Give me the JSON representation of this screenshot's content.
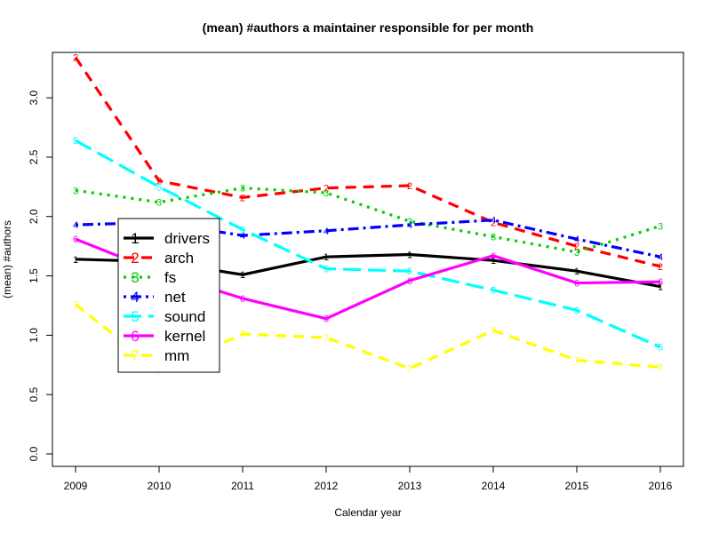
{
  "chart_data": {
    "type": "line",
    "title": "(mean) #authors a maintainer responsible for per month",
    "xlabel": "Calendar year",
    "ylabel": "(mean) #authors",
    "categories": [
      "2009",
      "2010",
      "2011",
      "2012",
      "2013",
      "2014",
      "2015",
      "2016"
    ],
    "y_ticks": [
      "0.0",
      "0.5",
      "1.0",
      "1.5",
      "2.0",
      "2.5",
      "3.0"
    ],
    "ylim": [
      0,
      3.5
    ],
    "grid": false,
    "legend_position": "center-left",
    "series": [
      {
        "name": "drivers",
        "marker": "1",
        "color": "#000000",
        "dash": "solid",
        "values": [
          1.64,
          1.62,
          1.51,
          1.66,
          1.68,
          1.63,
          1.54,
          1.41
        ]
      },
      {
        "name": "arch",
        "marker": "2",
        "color": "#ff0000",
        "dash": "dashed",
        "values": [
          3.34,
          2.3,
          2.16,
          2.24,
          2.26,
          1.95,
          1.75,
          1.58
        ]
      },
      {
        "name": "fs",
        "marker": "3",
        "color": "#00cd00",
        "dash": "dotted",
        "values": [
          2.22,
          2.12,
          2.24,
          2.2,
          1.96,
          1.83,
          1.7,
          1.92
        ]
      },
      {
        "name": "net",
        "marker": "4",
        "color": "#0000ff",
        "dash": "dotdash",
        "values": [
          1.93,
          1.95,
          1.84,
          1.88,
          1.93,
          1.97,
          1.81,
          1.66
        ]
      },
      {
        "name": "sound",
        "marker": "5",
        "color": "#00ffff",
        "dash": "longdash",
        "values": [
          2.64,
          2.25,
          1.89,
          1.56,
          1.54,
          1.38,
          1.21,
          0.9
        ]
      },
      {
        "name": "kernel",
        "marker": "6",
        "color": "#ff00ff",
        "dash": "solid",
        "values": [
          1.81,
          1.53,
          1.31,
          1.14,
          1.46,
          1.67,
          1.44,
          1.45
        ]
      },
      {
        "name": "mm",
        "marker": "7",
        "color": "#ffff00",
        "dash": "dashed",
        "values": [
          1.26,
          0.7,
          1.01,
          0.98,
          0.72,
          1.04,
          0.79,
          0.73
        ]
      }
    ]
  }
}
